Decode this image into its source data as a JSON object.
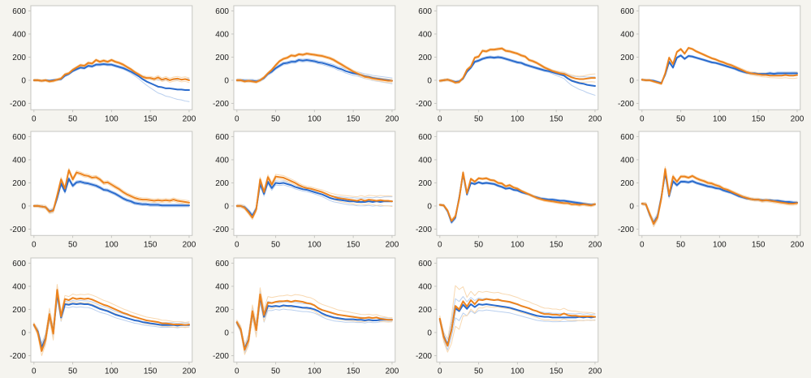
{
  "page": {
    "background": "#f5f4ef"
  },
  "palette": {
    "blue": "#2a6bcd",
    "orange": "#ec831e",
    "blue_light": "#b9cfee",
    "orange_light": "#f8d8b0",
    "frame": "#c6c6c2",
    "text": "#1b1b1b",
    "plot_bg": "#ffffff"
  },
  "chart_data": {
    "type": "line",
    "grid_layout": {
      "rows": 3,
      "cols": 4,
      "filled_cells": 11
    },
    "axes": {
      "x_ticks": [
        0,
        50,
        100,
        150,
        200
      ],
      "y_ticks": [
        -200,
        0,
        200,
        400,
        600
      ],
      "x_range": [
        0,
        200
      ],
      "y_range": [
        -250,
        640
      ],
      "grid": false,
      "legend": false
    },
    "series_legend": [
      {
        "name": "series-blue",
        "color": "#2a6bcd"
      },
      {
        "name": "series-orange",
        "color": "#ec831e"
      },
      {
        "name": "band-blue",
        "color": "#b9cfee"
      },
      {
        "name": "band-orange",
        "color": "#f8d8b0"
      }
    ],
    "x_start": 0,
    "x_step": 5,
    "charts": [
      {
        "id": "r1c1",
        "orange": [
          0,
          0,
          -5,
          0,
          -10,
          -5,
          5,
          15,
          50,
          60,
          90,
          110,
          130,
          125,
          150,
          145,
          175,
          160,
          170,
          160,
          175,
          160,
          150,
          135,
          115,
          95,
          70,
          50,
          30,
          20,
          20,
          10,
          25,
          5,
          15,
          0,
          10,
          15,
          5,
          10,
          0
        ],
        "blue": [
          0,
          0,
          -5,
          0,
          -5,
          0,
          5,
          10,
          40,
          55,
          80,
          95,
          110,
          105,
          125,
          120,
          135,
          135,
          140,
          135,
          135,
          125,
          115,
          105,
          90,
          75,
          55,
          35,
          10,
          -10,
          -25,
          -40,
          -55,
          -60,
          -70,
          -70,
          -75,
          -80,
          -80,
          -85,
          -85
        ],
        "spread": {
          "kx": [
            0,
            120,
            140,
            160,
            180,
            200
          ],
          "blue": [
            8,
            10,
            25,
            55,
            80,
            100
          ],
          "orange": [
            10,
            10,
            12,
            15,
            18,
            20
          ]
        }
      },
      {
        "id": "r1c2",
        "orange": [
          0,
          0,
          -10,
          -5,
          -10,
          -15,
          0,
          25,
          60,
          90,
          130,
          165,
          185,
          195,
          215,
          210,
          225,
          220,
          230,
          225,
          220,
          215,
          210,
          200,
          190,
          175,
          155,
          135,
          115,
          95,
          75,
          60,
          45,
          30,
          25,
          15,
          10,
          5,
          0,
          -5,
          -5
        ],
        "blue": [
          0,
          0,
          -5,
          -5,
          -5,
          -10,
          0,
          20,
          55,
          75,
          105,
          125,
          145,
          150,
          160,
          160,
          175,
          170,
          175,
          170,
          165,
          155,
          150,
          140,
          130,
          120,
          105,
          95,
          80,
          70,
          60,
          55,
          45,
          35,
          30,
          20,
          15,
          10,
          5,
          0,
          -5
        ],
        "spread": {
          "kx": [
            0,
            100,
            200
          ],
          "blue": [
            12,
            12,
            25
          ],
          "orange": [
            10,
            10,
            15
          ]
        }
      },
      {
        "id": "r1c3",
        "orange": [
          -5,
          0,
          5,
          -5,
          -20,
          -15,
          20,
          90,
          120,
          195,
          205,
          255,
          250,
          265,
          265,
          270,
          275,
          255,
          250,
          240,
          230,
          215,
          205,
          175,
          165,
          150,
          130,
          110,
          95,
          80,
          70,
          60,
          55,
          40,
          25,
          15,
          10,
          10,
          15,
          20,
          20
        ],
        "blue": [
          -5,
          0,
          5,
          -5,
          -15,
          -10,
          15,
          75,
          110,
          160,
          170,
          185,
          195,
          200,
          195,
          200,
          195,
          185,
          175,
          165,
          155,
          150,
          135,
          125,
          115,
          105,
          95,
          85,
          80,
          70,
          60,
          50,
          40,
          15,
          -5,
          -15,
          -25,
          -30,
          -40,
          -45,
          -50
        ],
        "spread": {
          "kx": [
            0,
            140,
            160,
            180,
            200
          ],
          "blue": [
            10,
            10,
            25,
            55,
            80
          ],
          "orange": [
            10,
            10,
            15,
            25,
            35
          ]
        }
      },
      {
        "id": "r1c4",
        "orange": [
          5,
          0,
          0,
          -10,
          -20,
          -30,
          60,
          195,
          140,
          245,
          270,
          230,
          280,
          270,
          250,
          235,
          220,
          205,
          190,
          180,
          165,
          155,
          140,
          130,
          115,
          100,
          85,
          70,
          60,
          55,
          50,
          45,
          45,
          40,
          40,
          40,
          40,
          45,
          40,
          40,
          45
        ],
        "blue": [
          5,
          0,
          0,
          -5,
          -15,
          -25,
          50,
          160,
          110,
          195,
          215,
          185,
          210,
          205,
          195,
          185,
          175,
          165,
          155,
          150,
          140,
          130,
          120,
          110,
          100,
          85,
          75,
          65,
          60,
          60,
          55,
          55,
          55,
          60,
          55,
          60,
          60,
          60,
          60,
          60,
          60
        ],
        "spread": {
          "kx": [
            0,
            100,
            150,
            200
          ],
          "blue": [
            8,
            8,
            10,
            12
          ],
          "orange": [
            8,
            8,
            15,
            25
          ]
        }
      },
      {
        "id": "r2c1",
        "orange": [
          0,
          0,
          -5,
          -10,
          -50,
          -40,
          90,
          230,
          150,
          310,
          230,
          290,
          280,
          265,
          260,
          245,
          250,
          230,
          200,
          205,
          185,
          165,
          145,
          120,
          100,
          85,
          70,
          60,
          55,
          55,
          50,
          45,
          50,
          45,
          50,
          45,
          55,
          45,
          40,
          35,
          30
        ],
        "blue": [
          0,
          0,
          -5,
          -10,
          -45,
          -35,
          70,
          195,
          125,
          235,
          175,
          205,
          210,
          200,
          195,
          185,
          175,
          160,
          140,
          135,
          120,
          105,
          85,
          65,
          50,
          40,
          25,
          20,
          15,
          15,
          10,
          10,
          10,
          5,
          5,
          5,
          5,
          5,
          5,
          5,
          5
        ],
        "spread": {
          "kx": [
            0,
            30,
            60,
            200
          ],
          "blue": [
            10,
            18,
            12,
            12
          ],
          "orange": [
            10,
            20,
            14,
            15
          ]
        }
      },
      {
        "id": "r2c2",
        "orange": [
          0,
          0,
          -15,
          -55,
          -100,
          -30,
          230,
          120,
          250,
          185,
          255,
          250,
          245,
          230,
          215,
          200,
          180,
          165,
          155,
          150,
          140,
          130,
          120,
          105,
          90,
          80,
          70,
          65,
          60,
          55,
          50,
          45,
          55,
          45,
          55,
          50,
          45,
          50,
          45,
          45,
          40
        ],
        "blue": [
          0,
          0,
          -10,
          -45,
          -85,
          -25,
          195,
          105,
          210,
          155,
          200,
          195,
          200,
          190,
          180,
          165,
          155,
          145,
          140,
          130,
          120,
          110,
          100,
          85,
          70,
          60,
          55,
          50,
          45,
          40,
          40,
          35,
          35,
          35,
          40,
          35,
          40,
          35,
          40,
          40,
          40
        ],
        "spread": {
          "kx": [
            0,
            30,
            100,
            140,
            200
          ],
          "blue": [
            12,
            20,
            15,
            30,
            40
          ],
          "orange": [
            12,
            20,
            15,
            30,
            45
          ]
        }
      },
      {
        "id": "r2c3",
        "orange": [
          10,
          5,
          -40,
          -130,
          -90,
          60,
          290,
          110,
          235,
          210,
          240,
          235,
          240,
          225,
          220,
          200,
          195,
          170,
          180,
          160,
          150,
          130,
          115,
          100,
          85,
          70,
          60,
          50,
          45,
          40,
          35,
          30,
          25,
          25,
          15,
          15,
          10,
          15,
          10,
          5,
          15
        ],
        "blue": [
          10,
          5,
          -45,
          -140,
          -100,
          70,
          280,
          100,
          200,
          190,
          205,
          195,
          200,
          195,
          190,
          175,
          165,
          150,
          155,
          140,
          135,
          120,
          110,
          100,
          85,
          75,
          65,
          60,
          55,
          55,
          50,
          45,
          45,
          40,
          35,
          30,
          25,
          20,
          15,
          10,
          15
        ],
        "spread": {
          "kx": [
            0,
            20,
            40,
            200
          ],
          "blue": [
            8,
            15,
            8,
            10
          ],
          "orange": [
            8,
            15,
            8,
            12
          ]
        }
      },
      {
        "id": "r2c4",
        "orange": [
          20,
          15,
          -70,
          -155,
          -100,
          65,
          320,
          95,
          255,
          210,
          255,
          255,
          245,
          260,
          240,
          225,
          215,
          200,
          195,
          180,
          170,
          150,
          140,
          125,
          110,
          95,
          80,
          70,
          60,
          55,
          55,
          45,
          50,
          45,
          40,
          35,
          30,
          25,
          20,
          20,
          25
        ],
        "blue": [
          20,
          15,
          -75,
          -145,
          -90,
          75,
          290,
          85,
          215,
          180,
          210,
          210,
          205,
          215,
          200,
          190,
          180,
          170,
          165,
          155,
          150,
          135,
          125,
          115,
          100,
          85,
          75,
          65,
          60,
          55,
          55,
          50,
          50,
          50,
          45,
          45,
          40,
          35,
          35,
          30,
          30
        ],
        "spread": {
          "kx": [
            0,
            15,
            30,
            50,
            200
          ],
          "blue": [
            10,
            25,
            20,
            10,
            10
          ],
          "orange": [
            10,
            25,
            20,
            10,
            14
          ]
        }
      },
      {
        "id": "r3c1",
        "orange": [
          70,
          0,
          -160,
          -60,
          160,
          -10,
          370,
          140,
          290,
          280,
          300,
          290,
          295,
          290,
          295,
          285,
          270,
          255,
          240,
          230,
          215,
          200,
          185,
          170,
          160,
          145,
          135,
          125,
          115,
          105,
          100,
          95,
          90,
          80,
          80,
          75,
          70,
          70,
          70,
          65,
          70
        ],
        "blue": [
          65,
          10,
          -130,
          -50,
          150,
          0,
          340,
          130,
          245,
          240,
          250,
          245,
          250,
          245,
          245,
          235,
          220,
          205,
          195,
          185,
          170,
          155,
          145,
          135,
          125,
          115,
          105,
          100,
          90,
          85,
          80,
          75,
          70,
          65,
          65,
          65,
          65,
          60,
          65,
          65,
          65
        ],
        "spread": {
          "kx": [
            0,
            10,
            25,
            40,
            80,
            150,
            200
          ],
          "blue": [
            15,
            35,
            50,
            25,
            30,
            22,
            18
          ],
          "orange": [
            15,
            40,
            55,
            30,
            40,
            28,
            22
          ]
        }
      },
      {
        "id": "r3c2",
        "orange": [
          90,
          30,
          -150,
          -70,
          185,
          20,
          330,
          150,
          260,
          255,
          265,
          270,
          270,
          275,
          265,
          275,
          270,
          265,
          255,
          250,
          235,
          210,
          195,
          185,
          175,
          165,
          155,
          150,
          145,
          140,
          135,
          130,
          125,
          125,
          130,
          125,
          130,
          120,
          115,
          110,
          110
        ],
        "blue": [
          85,
          25,
          -140,
          -60,
          175,
          30,
          310,
          135,
          230,
          225,
          230,
          225,
          235,
          230,
          230,
          225,
          220,
          215,
          215,
          210,
          200,
          185,
          165,
          150,
          140,
          130,
          125,
          120,
          115,
          115,
          115,
          110,
          110,
          105,
          110,
          105,
          105,
          110,
          110,
          110,
          110
        ],
        "spread": {
          "kx": [
            0,
            10,
            25,
            50,
            80,
            120,
            200
          ],
          "blue": [
            15,
            35,
            55,
            30,
            35,
            30,
            15
          ],
          "orange": [
            18,
            40,
            60,
            45,
            55,
            45,
            18
          ]
        }
      },
      {
        "id": "r3c3",
        "orange": [
          120,
          -40,
          -115,
          20,
          230,
          200,
          270,
          225,
          280,
          245,
          285,
          280,
          290,
          285,
          280,
          285,
          275,
          270,
          265,
          255,
          245,
          230,
          220,
          210,
          195,
          185,
          170,
          160,
          160,
          155,
          155,
          150,
          165,
          150,
          145,
          145,
          140,
          140,
          140,
          140,
          135
        ],
        "blue": [
          115,
          -30,
          -105,
          25,
          210,
          185,
          240,
          205,
          245,
          220,
          245,
          240,
          245,
          240,
          235,
          230,
          225,
          220,
          215,
          205,
          195,
          185,
          175,
          165,
          155,
          145,
          140,
          135,
          135,
          130,
          130,
          130,
          130,
          130,
          130,
          130,
          135,
          130,
          135,
          130,
          135
        ],
        "spread": {
          "kx": [
            0,
            10,
            22,
            35,
            60,
            120,
            160,
            200
          ],
          "blue": [
            20,
            45,
            90,
            60,
            50,
            40,
            35,
            25
          ],
          "orange": [
            25,
            55,
            200,
            80,
            65,
            55,
            45,
            30
          ]
        }
      }
    ]
  }
}
